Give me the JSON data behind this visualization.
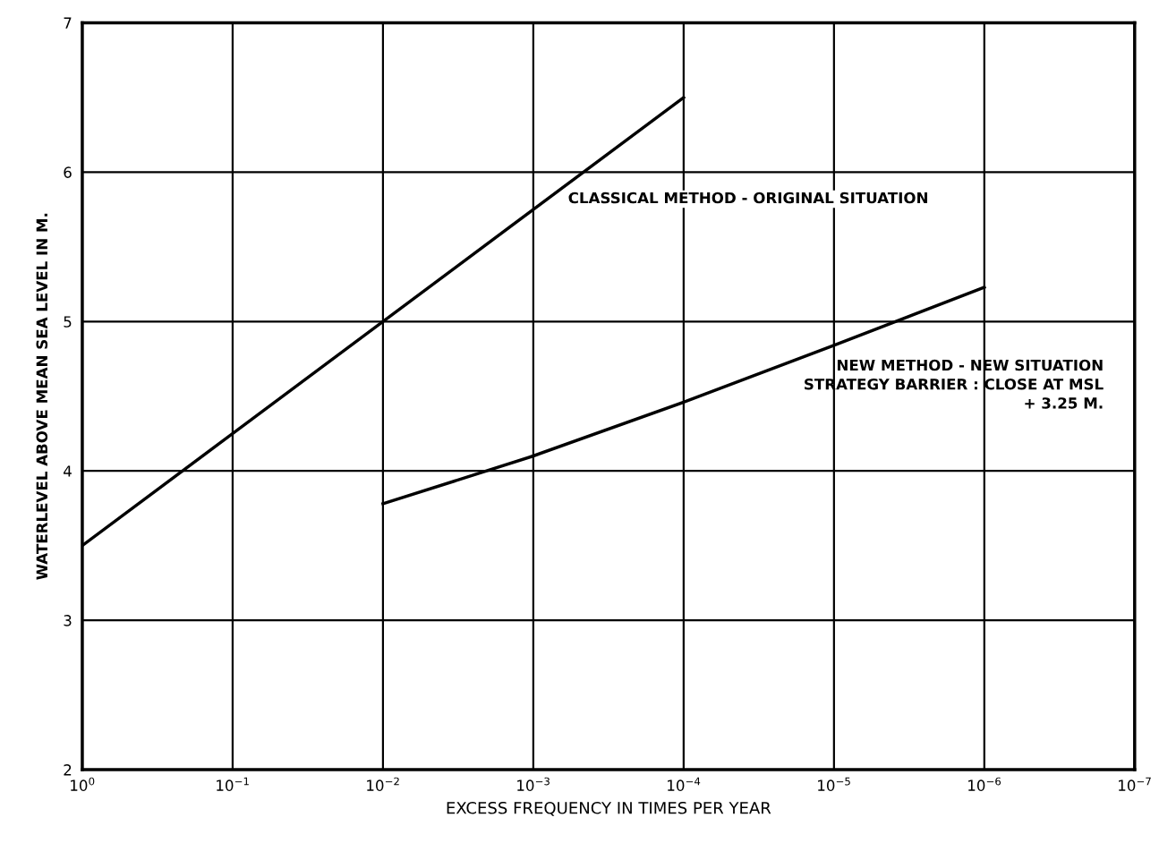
{
  "chart_data": {
    "type": "line",
    "xlabel": "EXCESS FREQUENCY IN TIMES PER YEAR",
    "ylabel": "WATERLEVEL ABOVE MEAN SEA LEVEL IN M.",
    "log": "x",
    "xlim": [
      1,
      1e-07
    ],
    "ylim": [
      2,
      7
    ],
    "xticks": [
      {
        "value": 1,
        "label": "10$^{0}$"
      },
      {
        "value": 0.1,
        "label": "10$^{−1}$"
      },
      {
        "value": 0.01,
        "label": "10$^{−2}$"
      },
      {
        "value": 0.001,
        "label": "10$^{−3}$"
      },
      {
        "value": 0.0001,
        "label": "10$^{−4}$"
      },
      {
        "value": 1e-05,
        "label": "10$^{−5}$"
      },
      {
        "value": 1e-06,
        "label": "10$^{−6}$"
      },
      {
        "value": 1e-07,
        "label": "10$^{−7}$"
      }
    ],
    "yticks": [
      2,
      3,
      4,
      5,
      6,
      7
    ],
    "grid": true,
    "marker": "none",
    "line_style": "solid",
    "series": [
      {
        "name": "CLASSICAL METHOD - ORIGINAL SITUATION",
        "color": "#000000",
        "x": [
          1,
          0.0001
        ],
        "values": [
          3.5,
          6.5
        ]
      },
      {
        "name": "NEW METHOD - NEW SITUATION\nSTRATEGY BARRIER : CLOSE AT MSL\n+ 3.25 M.",
        "color": "#000000",
        "x": [
          0.01,
          0.001,
          0.0001,
          1e-05,
          1e-06
        ],
        "values": [
          3.78,
          4.1,
          4.46,
          4.84,
          5.23
        ]
      }
    ]
  }
}
